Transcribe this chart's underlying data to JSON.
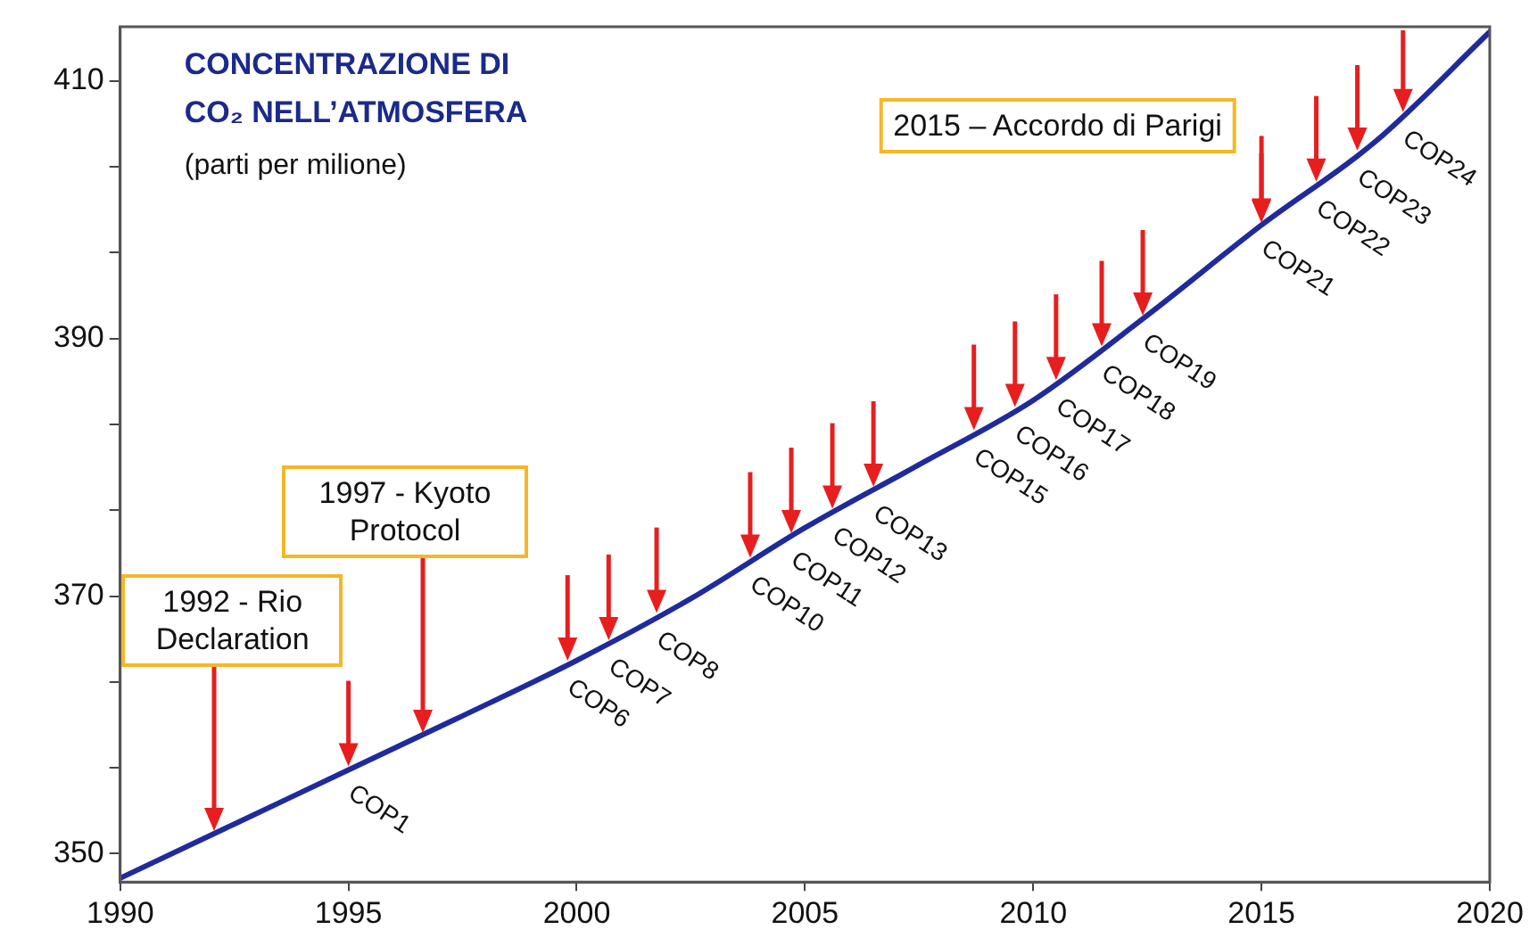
{
  "chart_data": {
    "type": "line",
    "title": "CONCENTRAZIONE DI CO₂ NELL’ATMOSFERA",
    "subtitle": "(parti per milione)",
    "marker": "none",
    "x": [
      1990,
      1992.5,
      1995,
      1997.5,
      2000,
      2002.5,
      2005,
      2007.5,
      2010,
      2012.5,
      2015,
      2017.5,
      2020
    ],
    "series": [
      {
        "color": "#1f2b9c",
        "values": [
          348.1,
          352.3,
          356.5,
          360.7,
          365,
          369.8,
          375.3,
          380.2,
          385.2,
          391.8,
          398.8,
          405.3,
          413.8
        ]
      }
    ],
    "xlim": [
      1990,
      2020
    ],
    "xticks": [
      1990,
      1995,
      2000,
      2005,
      2010,
      2015,
      2020
    ],
    "ylim": [
      347.8,
      414.2
    ],
    "yticks": [
      350,
      {
        "value": 356.7,
        "label": null
      },
      {
        "value": 363.3,
        "label": null
      },
      370,
      {
        "value": 376.7,
        "label": null
      },
      {
        "value": 383.3,
        "label": null
      },
      390,
      {
        "value": 396.7,
        "label": null
      },
      {
        "value": 403.3,
        "label": null
      },
      410
    ],
    "annotations": [
      "1992 - Rio Declaration",
      "1997 - Kyoto Protocol",
      "2015 – Accordo di Parigi",
      {
        "text": "COP1",
        "x": 1995,
        "y": 356.5
      },
      {
        "text": "COP6",
        "x": 1999.8,
        "y": 364.7
      },
      {
        "text": "COP7",
        "x": 2000.7,
        "y": 366.3
      },
      {
        "text": "COP8",
        "x": 2001.75,
        "y": 368.4
      },
      {
        "text": "COP10",
        "x": 2003.8,
        "y": 372.7
      },
      {
        "text": "COP11",
        "x": 2004.7,
        "y": 374.6
      },
      {
        "text": "COP12",
        "x": 2005.6,
        "y": 376.5
      },
      {
        "text": "COP13",
        "x": 2006.5,
        "y": 378.2
      },
      {
        "text": "COP15",
        "x": 2008.7,
        "y": 382.6
      },
      {
        "text": "COP16",
        "x": 2009.6,
        "y": 384.4
      },
      {
        "text": "COP17",
        "x": 2010.5,
        "y": 386.5
      },
      {
        "text": "COP18",
        "x": 2011.5,
        "y": 389.1
      },
      {
        "text": "COP19",
        "x": 2012.4,
        "y": 391.5
      },
      {
        "text": "COP21",
        "x": 2015,
        "y": 398.8
      },
      {
        "text": "COP22",
        "x": 2016.2,
        "y": 401.9
      },
      {
        "text": "COP23",
        "x": 2017.1,
        "y": 404.3
      },
      {
        "text": "COP24",
        "x": 2018.1,
        "y": 407.3
      }
    ]
  }
}
